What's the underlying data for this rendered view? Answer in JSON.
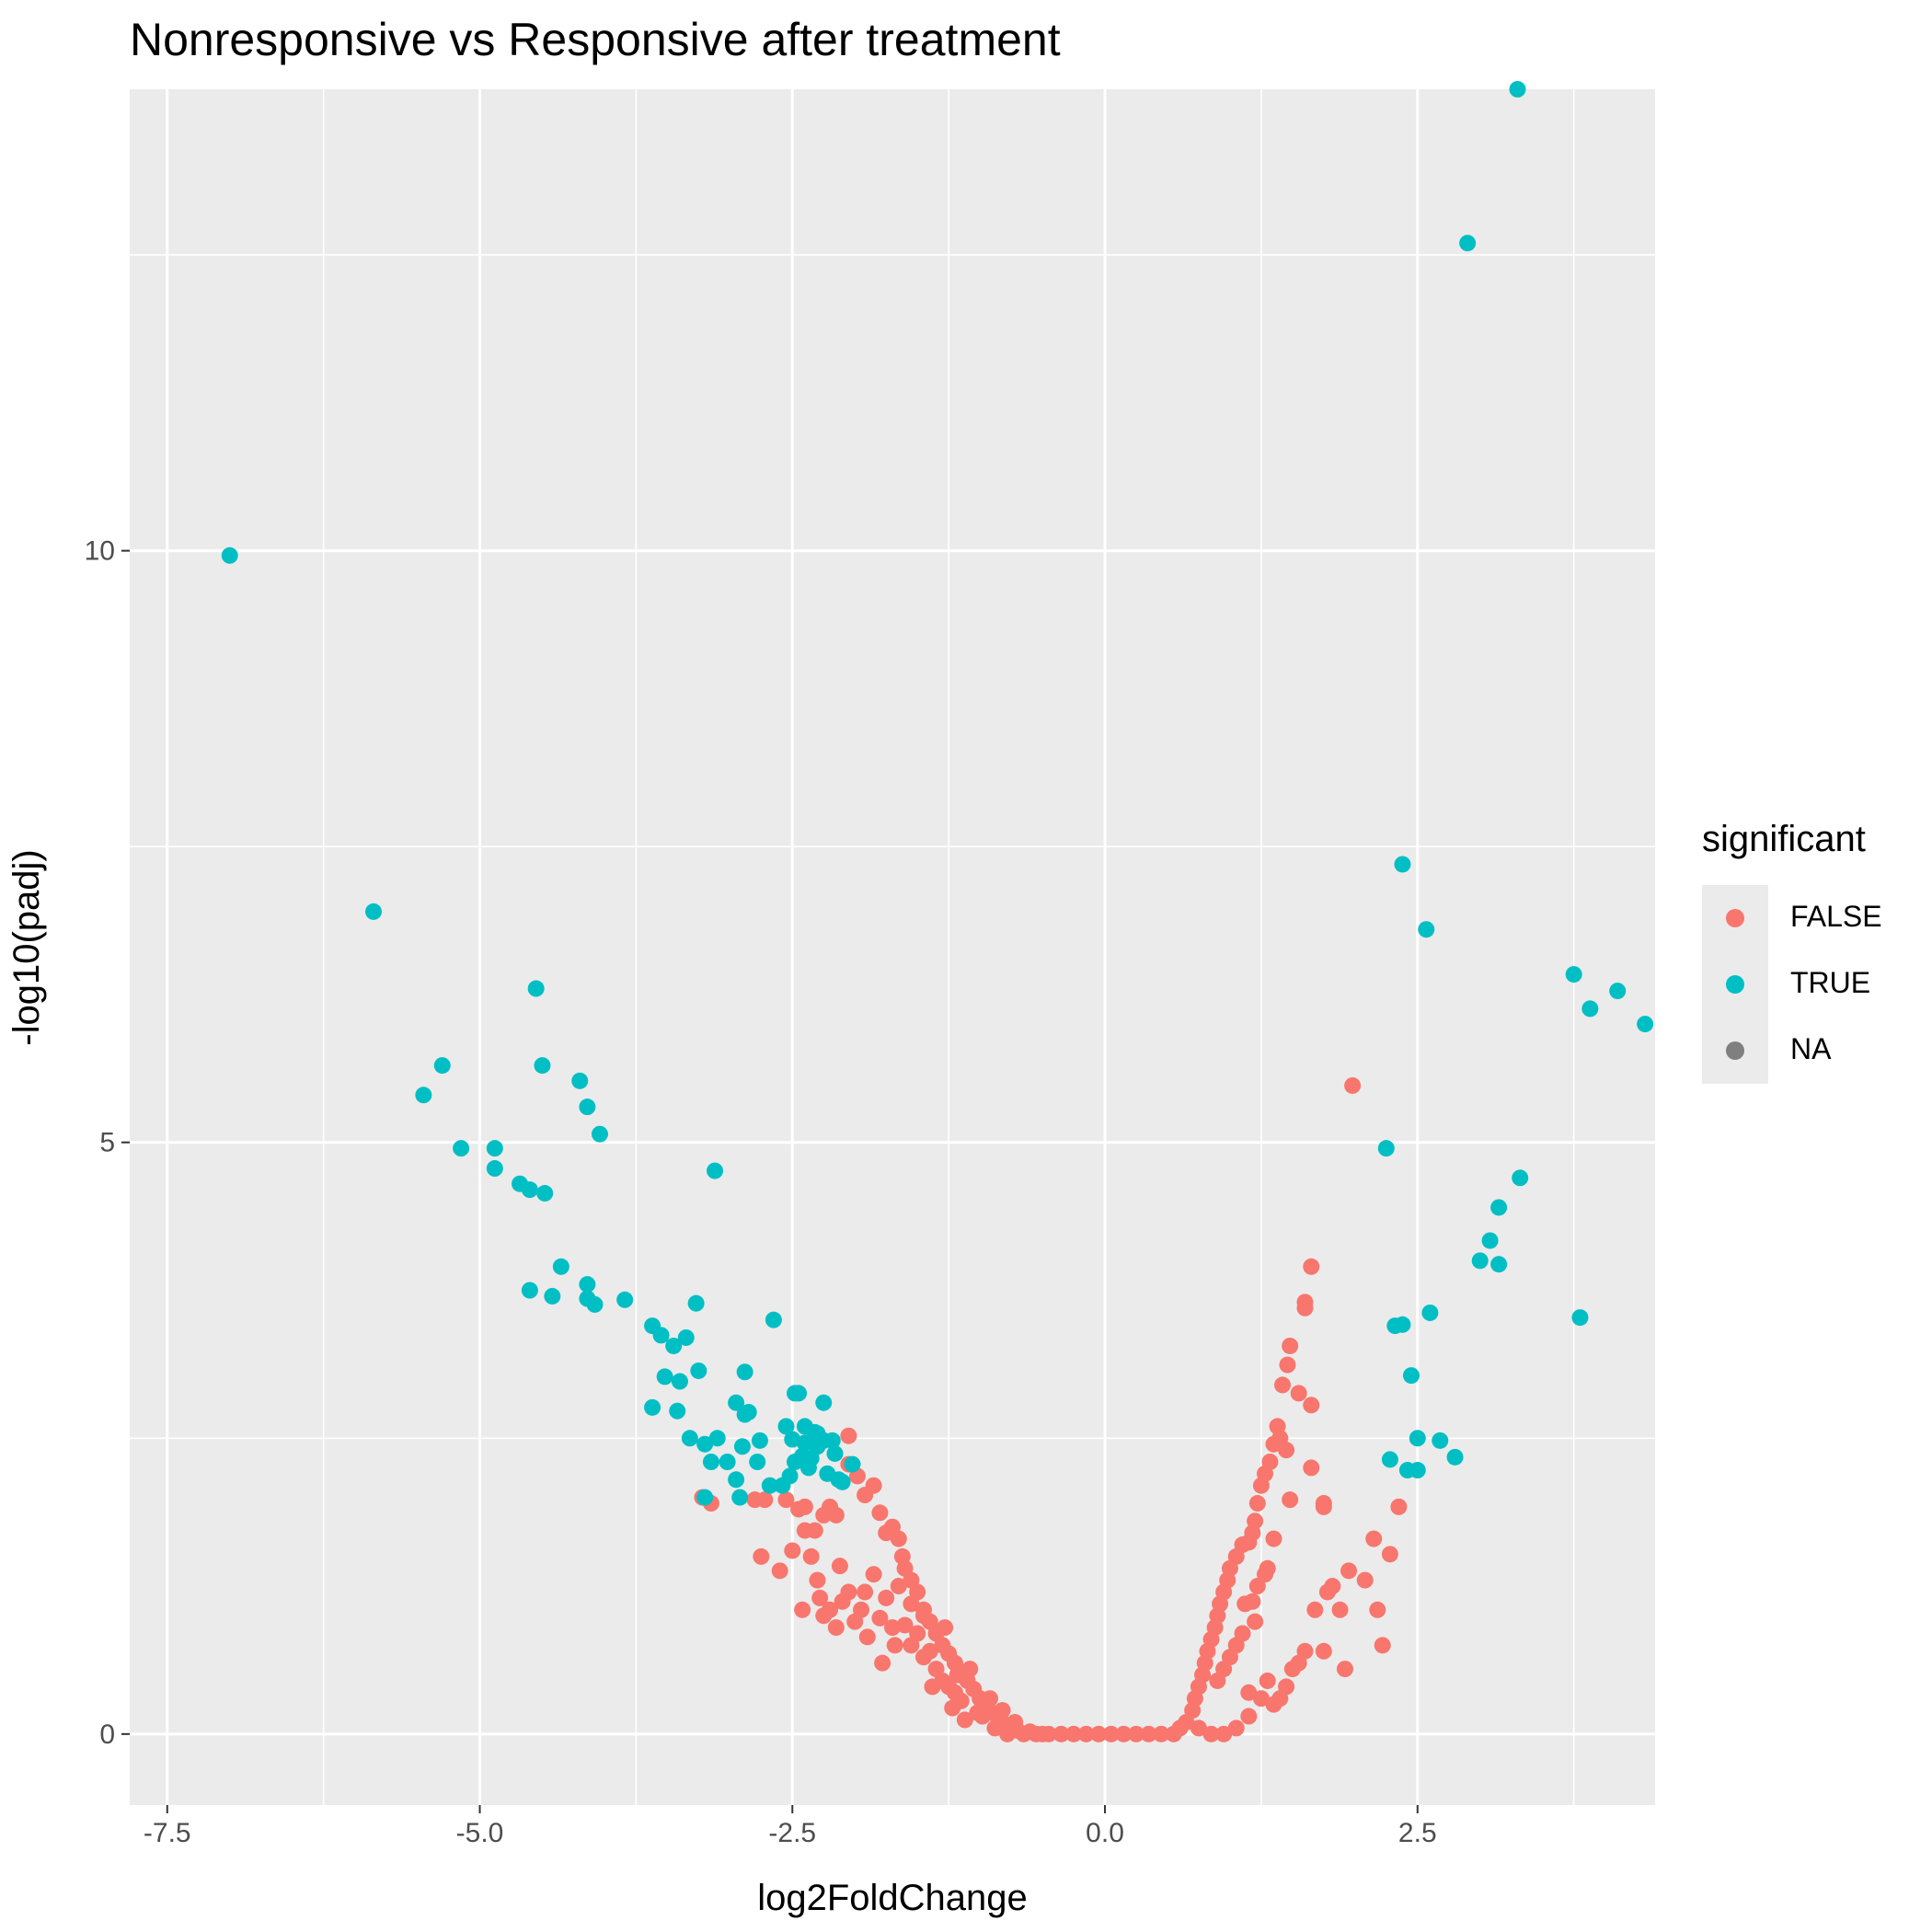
{
  "chart_data": {
    "type": "scatter",
    "title": "Nonresponsive vs Responsive after treatment",
    "xlabel": "log2FoldChange",
    "ylabel": "-log10(padj)",
    "xlim": [
      -7.8,
      4.4
    ],
    "ylim": [
      -0.6,
      13.9
    ],
    "x_ticks": [
      -7.5,
      -5.0,
      -2.5,
      0.0,
      2.5
    ],
    "x_tick_labels": [
      "-7.5",
      "-5.0",
      "-2.5",
      "0.0",
      "2.5"
    ],
    "y_ticks": [
      0,
      5,
      10
    ],
    "y_tick_labels": [
      "0",
      "5",
      "10"
    ],
    "grid": true,
    "legend": {
      "title": "significant",
      "position": "right",
      "entries": [
        {
          "label": "FALSE",
          "color": "#F8766D"
        },
        {
          "label": "TRUE",
          "color": "#00BFC4"
        },
        {
          "label": "NA",
          "color": "#7F7F7F"
        }
      ]
    },
    "series": [
      {
        "name": "TRUE",
        "color": "#00BFC4",
        "points": [
          [
            -7.0,
            9.96
          ],
          [
            -5.85,
            6.95
          ],
          [
            -5.45,
            5.4
          ],
          [
            -5.3,
            5.65
          ],
          [
            -5.15,
            4.95
          ],
          [
            -4.88,
            4.95
          ],
          [
            -4.88,
            4.78
          ],
          [
            -4.68,
            4.65
          ],
          [
            -4.6,
            4.6
          ],
          [
            -4.55,
            6.3
          ],
          [
            -4.5,
            5.65
          ],
          [
            -4.48,
            4.57
          ],
          [
            -4.35,
            3.95
          ],
          [
            -4.6,
            3.75
          ],
          [
            -4.42,
            3.7
          ],
          [
            -4.2,
            5.52
          ],
          [
            -4.14,
            5.3
          ],
          [
            -4.04,
            5.07
          ],
          [
            -4.14,
            3.8
          ],
          [
            -4.14,
            3.68
          ],
          [
            -4.08,
            3.63
          ],
          [
            -3.84,
            3.67
          ],
          [
            -3.62,
            3.45
          ],
          [
            -3.55,
            3.37
          ],
          [
            -3.45,
            3.28
          ],
          [
            -3.35,
            3.35
          ],
          [
            -3.27,
            3.64
          ],
          [
            -3.12,
            4.76
          ],
          [
            -3.52,
            3.02
          ],
          [
            -3.62,
            2.76
          ],
          [
            -3.4,
            2.98
          ],
          [
            -3.25,
            3.07
          ],
          [
            -3.42,
            2.73
          ],
          [
            -3.32,
            2.5
          ],
          [
            -3.2,
            2.45
          ],
          [
            -3.1,
            2.5
          ],
          [
            -3.02,
            2.3
          ],
          [
            -3.15,
            2.3
          ],
          [
            -2.95,
            2.8
          ],
          [
            -2.88,
            3.06
          ],
          [
            -2.88,
            2.7
          ],
          [
            -2.9,
            2.43
          ],
          [
            -2.85,
            2.72
          ],
          [
            -2.76,
            2.48
          ],
          [
            -2.78,
            2.3
          ],
          [
            -2.65,
            3.5
          ],
          [
            -2.55,
            2.6
          ],
          [
            -2.48,
            2.88
          ],
          [
            -2.45,
            2.88
          ],
          [
            -2.4,
            2.6
          ],
          [
            -2.42,
            2.35
          ],
          [
            -2.37,
            2.25
          ],
          [
            -2.3,
            2.54
          ],
          [
            -2.35,
            2.33
          ],
          [
            -2.25,
            2.8
          ],
          [
            -2.3,
            2.43
          ],
          [
            -2.25,
            2.48
          ],
          [
            -2.22,
            2.2
          ],
          [
            -2.18,
            2.48
          ],
          [
            -2.16,
            2.37
          ],
          [
            -2.13,
            2.15
          ],
          [
            -2.1,
            2.13
          ],
          [
            -2.02,
            2.28
          ],
          [
            -2.5,
            2.49
          ],
          [
            -3.2,
            2.0
          ],
          [
            -2.92,
            2.0
          ],
          [
            -2.58,
            2.1
          ],
          [
            -2.48,
            2.3
          ],
          [
            -2.68,
            2.1
          ],
          [
            -2.52,
            2.18
          ],
          [
            -2.4,
            2.46
          ],
          [
            -2.32,
            2.55
          ],
          [
            -2.95,
            2.15
          ],
          [
            3.3,
            13.9
          ],
          [
            2.9,
            12.6
          ],
          [
            2.38,
            7.35
          ],
          [
            2.57,
            6.8
          ],
          [
            3.75,
            6.42
          ],
          [
            3.88,
            6.13
          ],
          [
            4.1,
            6.28
          ],
          [
            4.32,
            6.0
          ],
          [
            2.25,
            4.95
          ],
          [
            3.32,
            4.7
          ],
          [
            3.15,
            4.45
          ],
          [
            3.08,
            4.17
          ],
          [
            3.0,
            4.0
          ],
          [
            3.15,
            3.97
          ],
          [
            2.6,
            3.56
          ],
          [
            2.32,
            3.45
          ],
          [
            2.38,
            3.46
          ],
          [
            3.8,
            3.52
          ],
          [
            2.45,
            3.03
          ],
          [
            2.5,
            2.5
          ],
          [
            2.68,
            2.48
          ],
          [
            2.8,
            2.34
          ],
          [
            2.28,
            2.32
          ],
          [
            2.42,
            2.23
          ],
          [
            2.5,
            2.23
          ]
        ]
      },
      {
        "name": "FALSE",
        "color": "#F8766D",
        "points": [
          [
            -3.15,
            1.95
          ],
          [
            -3.22,
            2.0
          ],
          [
            -2.8,
            1.98
          ],
          [
            -2.72,
            1.98
          ],
          [
            -2.55,
            1.98
          ],
          [
            -2.45,
            1.9
          ],
          [
            -2.4,
            1.92
          ],
          [
            -2.32,
            1.72
          ],
          [
            -2.25,
            1.85
          ],
          [
            -2.2,
            1.92
          ],
          [
            -2.15,
            1.85
          ],
          [
            -2.05,
            2.52
          ],
          [
            -2.05,
            2.28
          ],
          [
            -1.98,
            2.18
          ],
          [
            -1.92,
            2.02
          ],
          [
            -1.85,
            2.1
          ],
          [
            -1.8,
            1.87
          ],
          [
            -1.75,
            1.7
          ],
          [
            -1.7,
            1.75
          ],
          [
            -1.65,
            1.65
          ],
          [
            -1.62,
            1.5
          ],
          [
            -1.6,
            1.4
          ],
          [
            -1.55,
            1.3
          ],
          [
            -1.5,
            1.2
          ],
          [
            -1.45,
            1.05
          ],
          [
            -1.4,
            0.95
          ],
          [
            -1.35,
            0.85
          ],
          [
            -1.3,
            0.75
          ],
          [
            -1.25,
            0.68
          ],
          [
            -1.2,
            0.6
          ],
          [
            -1.15,
            0.5
          ],
          [
            -1.1,
            0.45
          ],
          [
            -1.05,
            0.38
          ],
          [
            -1.0,
            0.3
          ],
          [
            -0.95,
            0.25
          ],
          [
            -0.9,
            0.18
          ],
          [
            -0.85,
            0.12
          ],
          [
            -0.8,
            0.08
          ],
          [
            -0.75,
            0.05
          ],
          [
            -0.7,
            0.03
          ],
          [
            -2.75,
            1.5
          ],
          [
            -2.6,
            1.38
          ],
          [
            -2.5,
            1.55
          ],
          [
            -2.4,
            1.72
          ],
          [
            -2.35,
            1.5
          ],
          [
            -2.3,
            1.3
          ],
          [
            -2.28,
            1.15
          ],
          [
            -2.25,
            1.0
          ],
          [
            -2.2,
            1.05
          ],
          [
            -2.15,
            0.9
          ],
          [
            -2.1,
            1.12
          ],
          [
            -2.05,
            1.2
          ],
          [
            -2.0,
            0.95
          ],
          [
            -1.95,
            1.05
          ],
          [
            -1.9,
            0.82
          ],
          [
            -1.85,
            1.35
          ],
          [
            -1.8,
            0.98
          ],
          [
            -1.75,
            1.15
          ],
          [
            -1.7,
            0.9
          ],
          [
            -1.65,
            1.25
          ],
          [
            -1.6,
            0.92
          ],
          [
            -1.55,
            0.75
          ],
          [
            -1.5,
            0.85
          ],
          [
            -1.45,
            0.65
          ],
          [
            -1.4,
            0.7
          ],
          [
            -1.35,
            0.55
          ],
          [
            -1.3,
            0.45
          ],
          [
            -1.25,
            0.4
          ],
          [
            -1.2,
            0.35
          ],
          [
            -1.15,
            0.28
          ],
          [
            -2.42,
            1.05
          ],
          [
            -2.12,
            1.42
          ],
          [
            -1.92,
            1.2
          ],
          [
            -1.78,
            0.6
          ],
          [
            -1.68,
            0.75
          ],
          [
            -1.55,
            1.1
          ],
          [
            -1.45,
            1.0
          ],
          [
            -1.38,
            0.4
          ],
          [
            -1.28,
            0.9
          ],
          [
            -1.18,
            0.5
          ],
          [
            -1.08,
            0.55
          ],
          [
            -0.98,
            0.15
          ],
          [
            -0.88,
            0.05
          ],
          [
            -0.65,
            0.0
          ],
          [
            -0.55,
            0.0
          ],
          [
            -0.45,
            0.0
          ],
          [
            -0.35,
            0.0
          ],
          [
            -0.25,
            0.0
          ],
          [
            -0.15,
            0.0
          ],
          [
            -0.05,
            0.0
          ],
          [
            0.05,
            0.0
          ],
          [
            0.15,
            0.0
          ],
          [
            0.25,
            0.0
          ],
          [
            0.35,
            0.0
          ],
          [
            0.45,
            0.0
          ],
          [
            0.55,
            0.0
          ],
          [
            -0.6,
            0.02
          ],
          [
            -0.72,
            0.1
          ],
          [
            -0.82,
            0.2
          ],
          [
            -0.92,
            0.3
          ],
          [
            -1.02,
            0.18
          ],
          [
            -1.12,
            0.12
          ],
          [
            -1.22,
            0.22
          ],
          [
            -0.78,
            0.0
          ],
          [
            -0.5,
            0.0
          ],
          [
            1.98,
            5.48
          ],
          [
            1.65,
            3.95
          ],
          [
            1.6,
            3.65
          ],
          [
            1.6,
            3.6
          ],
          [
            1.48,
            3.28
          ],
          [
            1.46,
            3.12
          ],
          [
            1.42,
            2.95
          ],
          [
            1.55,
            2.88
          ],
          [
            1.65,
            2.78
          ],
          [
            1.38,
            2.6
          ],
          [
            1.4,
            2.5
          ],
          [
            1.35,
            2.45
          ],
          [
            1.45,
            2.4
          ],
          [
            1.32,
            2.3
          ],
          [
            1.28,
            2.2
          ],
          [
            1.25,
            2.1
          ],
          [
            1.22,
            1.95
          ],
          [
            1.2,
            1.8
          ],
          [
            1.18,
            1.7
          ],
          [
            1.15,
            1.62
          ],
          [
            1.1,
            1.6
          ],
          [
            1.05,
            1.5
          ],
          [
            1.0,
            1.4
          ],
          [
            0.98,
            1.3
          ],
          [
            0.95,
            1.2
          ],
          [
            0.92,
            1.1
          ],
          [
            0.9,
            1.0
          ],
          [
            0.88,
            0.9
          ],
          [
            0.85,
            0.8
          ],
          [
            0.82,
            0.7
          ],
          [
            0.8,
            0.6
          ],
          [
            0.78,
            0.5
          ],
          [
            0.75,
            0.4
          ],
          [
            0.72,
            0.3
          ],
          [
            0.7,
            0.2
          ],
          [
            0.65,
            0.1
          ],
          [
            0.6,
            0.05
          ],
          [
            1.65,
            2.25
          ],
          [
            1.48,
            1.98
          ],
          [
            1.35,
            1.65
          ],
          [
            1.3,
            1.4
          ],
          [
            1.28,
            1.35
          ],
          [
            1.22,
            1.25
          ],
          [
            1.18,
            1.12
          ],
          [
            1.12,
            1.1
          ],
          [
            1.2,
            0.95
          ],
          [
            1.1,
            0.85
          ],
          [
            1.05,
            0.75
          ],
          [
            1.0,
            0.65
          ],
          [
            0.95,
            0.55
          ],
          [
            0.9,
            0.45
          ],
          [
            1.15,
            0.35
          ],
          [
            1.25,
            0.3
          ],
          [
            1.35,
            0.25
          ],
          [
            1.45,
            0.4
          ],
          [
            1.5,
            0.55
          ],
          [
            1.55,
            0.6
          ],
          [
            1.6,
            0.7
          ],
          [
            1.4,
            0.3
          ],
          [
            1.3,
            0.45
          ],
          [
            1.75,
            1.95
          ],
          [
            1.75,
            1.92
          ],
          [
            1.78,
            1.2
          ],
          [
            1.68,
            1.05
          ],
          [
            1.75,
            0.7
          ],
          [
            1.82,
            1.25
          ],
          [
            1.92,
            0.55
          ],
          [
            1.88,
            1.05
          ],
          [
            1.95,
            1.38
          ],
          [
            2.08,
            1.3
          ],
          [
            2.15,
            1.65
          ],
          [
            2.18,
            1.05
          ],
          [
            2.22,
            0.75
          ],
          [
            2.28,
            1.52
          ],
          [
            2.35,
            1.92
          ],
          [
            0.85,
            0.0
          ],
          [
            0.75,
            0.05
          ],
          [
            0.95,
            0.0
          ],
          [
            1.05,
            0.05
          ],
          [
            1.15,
            0.15
          ]
        ]
      }
    ]
  }
}
